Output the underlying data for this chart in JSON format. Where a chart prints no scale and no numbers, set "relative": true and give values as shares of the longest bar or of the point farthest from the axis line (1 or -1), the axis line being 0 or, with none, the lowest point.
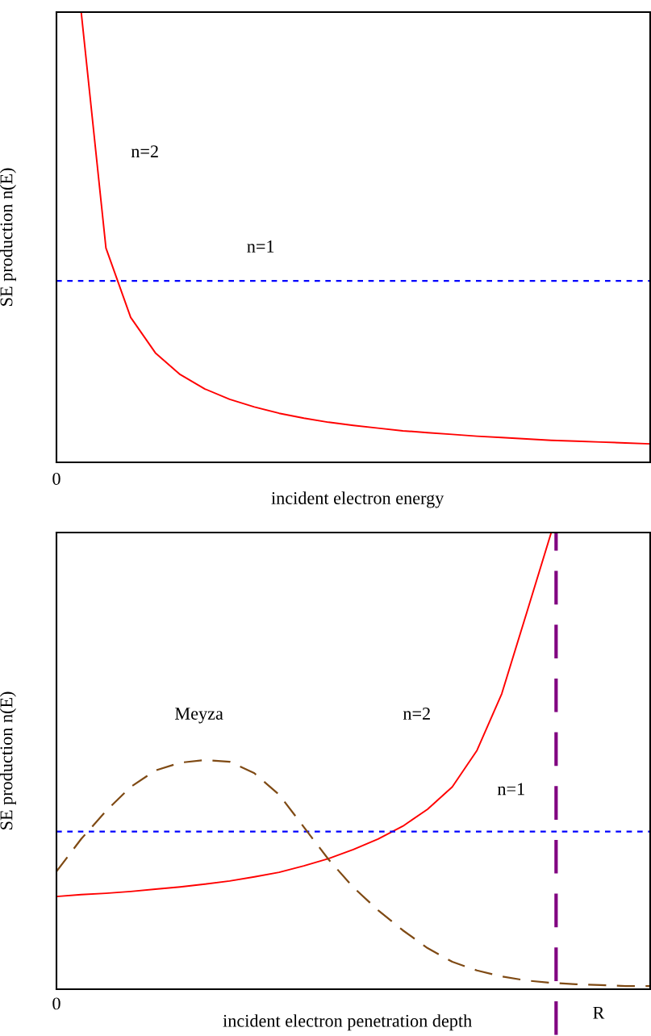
{
  "chart_data": [
    {
      "type": "line",
      "relative": true,
      "xlabel": "incident electron energy",
      "ylabel": "SE production n(E)",
      "categories": [
        null,
        null,
        null,
        null,
        null,
        null,
        null,
        null,
        null,
        null,
        null,
        null,
        null,
        null,
        null,
        null,
        null,
        null,
        null,
        null,
        null,
        null,
        null,
        null,
        null
      ],
      "series": [
        {
          "color": "#ff0000",
          "line_style": "solid",
          "values": [
            null,
            1.0,
            0.476,
            0.322,
            0.243,
            0.195,
            0.163,
            0.14,
            0.123,
            0.109,
            0.098,
            0.089,
            0.082,
            0.076,
            0.07,
            0.066,
            0.062,
            0.058,
            0.055,
            0.052,
            0.049,
            0.047,
            0.045,
            0.043,
            0.041
          ]
        },
        {
          "color": "#0000ff",
          "line_style": "dotted",
          "values": [
            0.403,
            0.403,
            0.403,
            0.403,
            0.403,
            0.403,
            0.403,
            0.403,
            0.403,
            0.403,
            0.403,
            0.403,
            0.403,
            0.403,
            0.403,
            0.403,
            0.403,
            0.403,
            0.403,
            0.403,
            0.403,
            0.403,
            0.403,
            0.403,
            0.403
          ]
        }
      ],
      "annotations": [
        "n=2",
        "n=1",
        "0"
      ]
    },
    {
      "type": "line",
      "relative": true,
      "xlabel": "incident electron penetration depth",
      "ylabel": "SE production n(E)",
      "categories": [
        null,
        null,
        null,
        null,
        null,
        null,
        null,
        null,
        null,
        null,
        null,
        null,
        null,
        null,
        null,
        null,
        null,
        null,
        null,
        null,
        null,
        null,
        null,
        null,
        null
      ],
      "series": [
        {
          "color": "#ff0000",
          "line_style": "solid",
          "values": [
            0.203,
            0.207,
            0.21,
            0.214,
            0.219,
            0.224,
            0.23,
            0.237,
            0.246,
            0.256,
            0.27,
            0.286,
            0.306,
            0.329,
            0.357,
            0.394,
            0.443,
            0.523,
            0.647,
            0.823,
            1.0,
            null,
            null,
            null,
            null
          ]
        },
        {
          "color": "#0000ff",
          "line_style": "dotted",
          "values": [
            0.345,
            0.345,
            0.345,
            0.345,
            0.345,
            0.345,
            0.345,
            0.345,
            0.345,
            0.345,
            0.345,
            0.345,
            0.345,
            0.345,
            0.345,
            0.345,
            0.345,
            0.345,
            0.345,
            0.345,
            0.345,
            0.345,
            0.345,
            0.345,
            0.345
          ]
        },
        {
          "color": "#7f4a14",
          "line_style": "dashed",
          "values": [
            0.258,
            0.329,
            0.39,
            0.443,
            0.479,
            0.496,
            0.502,
            0.498,
            0.473,
            0.426,
            0.355,
            0.284,
            0.223,
            0.173,
            0.129,
            0.09,
            0.06,
            0.041,
            0.028,
            0.019,
            0.014,
            0.011,
            0.009,
            0.007,
            0.007
          ]
        }
      ],
      "annotations": [
        "Meyza",
        "n=2",
        "n=1",
        "0",
        "R"
      ]
    }
  ]
}
